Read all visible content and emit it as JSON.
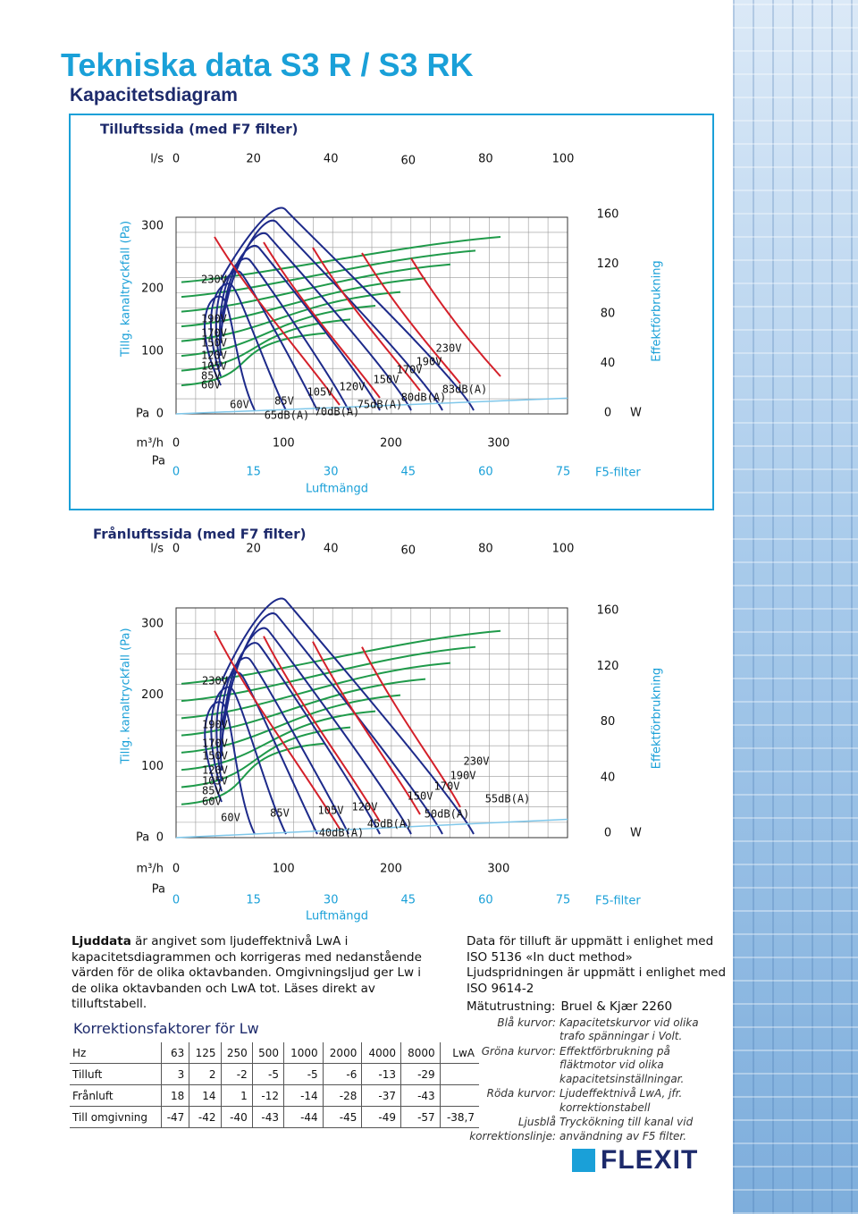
{
  "header": {
    "title": "Tekniska data S3 R / S3 RK",
    "subtitle": "Kapacitetsdiagram"
  },
  "diagrams": [
    {
      "title": "Tilluftssida (med F7 filter)",
      "flow_unit": "l/s",
      "flow_ticks": [
        0,
        20,
        40,
        60,
        80,
        100
      ],
      "pressure_label": "Tillg. kanaltryckfall (Pa)",
      "pressure_ticks": [
        300,
        200,
        100,
        0
      ],
      "pressure_unit": "Pa",
      "power_label": "Effektförbrukning",
      "power_ticks": [
        160,
        120,
        80,
        40,
        0
      ],
      "power_unit": "W",
      "volume_unit": "m³/h",
      "volume_ticks": [
        0,
        100,
        200,
        300
      ],
      "filter_unit": "Pa",
      "filter_ticks": [
        0,
        15,
        30,
        45,
        60,
        75
      ],
      "filter_label": "F5-filter",
      "x_label": "Luftmängd",
      "curve_labels": [
        "230V",
        "190V",
        "170V",
        "150V",
        "120V",
        "105V",
        "85V",
        "60V",
        "60V",
        "85V",
        "105V",
        "120V",
        "150V",
        "170V",
        "190V",
        "230V",
        "83dB(A)",
        "80dB(A)",
        "75dB(A)",
        "70dB(A)",
        "65dB(A)"
      ]
    },
    {
      "title": "Frånluftssida (med F7 filter)",
      "flow_unit": "l/s",
      "flow_ticks": [
        0,
        20,
        40,
        60,
        80,
        100
      ],
      "pressure_label": "Tillg. kanaltryckfall (Pa)",
      "pressure_ticks": [
        300,
        200,
        100,
        0
      ],
      "pressure_unit": "Pa",
      "power_label": "Effektförbrukning",
      "power_ticks": [
        160,
        120,
        80,
        40,
        0
      ],
      "power_unit": "W",
      "volume_unit": "m³/h",
      "volume_ticks": [
        0,
        100,
        200,
        300
      ],
      "filter_unit": "Pa",
      "filter_ticks": [
        0,
        15,
        30,
        45,
        60,
        75
      ],
      "filter_label": "F5-filter",
      "x_label": "Luftmängd",
      "curve_labels": [
        "230V",
        "190V",
        "170V",
        "150V",
        "120V",
        "105V",
        "85V",
        "60V",
        "60V",
        "85V",
        "105V",
        "120V",
        "150V",
        "170V",
        "190V",
        "230V",
        "55dB(A)",
        "50dB(A)",
        "45dB(A)",
        "40dB(A)"
      ]
    }
  ],
  "sound_note": {
    "lead": "Ljuddata",
    "text": " är angivet som ljudeffektnivå LwA i kapacitetsdiagrammen och korrigeras med nedanstående värden för de olika oktavbanden. Omgivningsljud ger Lw i de olika oktavbanden och LwA tot. Läses direkt av tilluftstabell."
  },
  "correction_table": {
    "title": "Korrektionsfaktorer för Lw",
    "rows": [
      [
        "Hz",
        "63",
        "125",
        "250",
        "500",
        "1000",
        "2000",
        "4000",
        "8000",
        "LwA"
      ],
      [
        "Tilluft",
        "3",
        "2",
        "-2",
        "-5",
        "-5",
        "-6",
        "-13",
        "-29"
      ],
      [
        "Frånluft",
        "18",
        "14",
        "1",
        "-12",
        "-14",
        "-28",
        "-37",
        "-43"
      ],
      [
        "Till omgivning",
        "-47",
        "-42",
        "-40",
        "-43",
        "-44",
        "-45",
        "-49",
        "-57",
        "-38,7"
      ]
    ]
  },
  "measurement": {
    "lines": [
      "Data för tilluft är uppmätt i enlighet med ISO 5136 «In duct method»",
      "Ljudspridningen är uppmätt i enlighet med ISO 9614-2"
    ],
    "equipment_label": "Mätutrustning:",
    "equipment": "Bruel & Kjær 2260",
    "legend": [
      {
        "term": "Blå kurvor:",
        "desc": "Kapacitetskurvor vid olika trafo spänningar i Volt."
      },
      {
        "term": "Gröna kurvor:",
        "desc": "Effektförbrukning på fläktmotor vid olika kapacitetsinställningar."
      },
      {
        "term": "Röda kurvor:",
        "desc": "Ljudeffektnivå LwA, jfr. korrektionstabell"
      },
      {
        "term": "Ljusblå korrektionslinje:",
        "desc": "Tryckökning till kanal vid användning av F5 filter."
      }
    ]
  },
  "brand": "FLEXIT"
}
